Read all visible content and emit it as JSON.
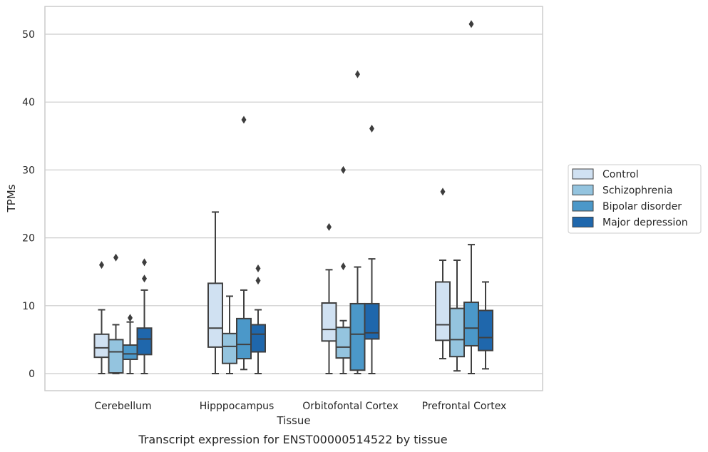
{
  "chart_data": {
    "type": "box",
    "xlabel": "Tissue",
    "ylabel": "TPMs",
    "caption": "Transcript expression for ENST00000514522 by tissue",
    "ylim": [
      -2.5,
      54
    ],
    "yticks": [
      0,
      10,
      20,
      30,
      40,
      50
    ],
    "grid": "horizontal",
    "legend_position": "right",
    "categories": [
      "Cerebellum",
      "Hipppocampus",
      "Orbitofontal Cortex",
      "Prefrontal Cortex"
    ],
    "series": [
      {
        "name": "Control",
        "color": "#d0e1f2",
        "boxes": [
          {
            "whislo": 0,
            "q1": 2.4,
            "med": 3.8,
            "q3": 5.8,
            "whishi": 9.4,
            "fliers": [
              16.0
            ]
          },
          {
            "whislo": 0,
            "q1": 3.9,
            "med": 6.7,
            "q3": 13.3,
            "whishi": 23.8,
            "fliers": []
          },
          {
            "whislo": 0,
            "q1": 4.8,
            "med": 6.5,
            "q3": 10.4,
            "whishi": 15.3,
            "fliers": [
              21.6
            ]
          },
          {
            "whislo": 2.2,
            "q1": 4.9,
            "med": 7.2,
            "q3": 13.5,
            "whishi": 16.7,
            "fliers": [
              26.8
            ]
          }
        ]
      },
      {
        "name": "Schizophrenia",
        "color": "#94c4df",
        "boxes": [
          {
            "whislo": 0,
            "q1": 0.1,
            "med": 3.2,
            "q3": 5.0,
            "whishi": 7.2,
            "fliers": [
              17.1
            ]
          },
          {
            "whislo": 0,
            "q1": 1.5,
            "med": 4.0,
            "q3": 5.9,
            "whishi": 11.4,
            "fliers": []
          },
          {
            "whislo": 0,
            "q1": 2.3,
            "med": 3.9,
            "q3": 6.8,
            "whishi": 7.8,
            "fliers": [
              15.8,
              30.0
            ]
          },
          {
            "whislo": 0.4,
            "q1": 2.5,
            "med": 5.0,
            "q3": 9.6,
            "whishi": 16.7,
            "fliers": []
          }
        ]
      },
      {
        "name": "Bipolar disorder",
        "color": "#4b98c9",
        "boxes": [
          {
            "whislo": 0,
            "q1": 2.1,
            "med": 2.9,
            "q3": 4.2,
            "whishi": 7.6,
            "fliers": [
              8.2
            ]
          },
          {
            "whislo": 0.6,
            "q1": 2.2,
            "med": 4.3,
            "q3": 8.1,
            "whishi": 12.3,
            "fliers": [
              37.4
            ]
          },
          {
            "whislo": 0,
            "q1": 0.5,
            "med": 5.8,
            "q3": 10.3,
            "whishi": 15.7,
            "fliers": [
              44.1
            ]
          },
          {
            "whislo": 0,
            "q1": 4.1,
            "med": 6.7,
            "q3": 10.5,
            "whishi": 19.0,
            "fliers": [
              51.5
            ]
          }
        ]
      },
      {
        "name": "Major depression",
        "color": "#1f67ac",
        "boxes": [
          {
            "whislo": 0,
            "q1": 2.8,
            "med": 5.1,
            "q3": 6.7,
            "whishi": 12.3,
            "fliers": [
              14.0,
              16.4
            ]
          },
          {
            "whislo": 0,
            "q1": 3.2,
            "med": 5.8,
            "q3": 7.2,
            "whishi": 9.4,
            "fliers": [
              13.7,
              15.5
            ]
          },
          {
            "whislo": 0,
            "q1": 5.1,
            "med": 6.0,
            "q3": 10.3,
            "whishi": 16.9,
            "fliers": [
              36.1
            ]
          },
          {
            "whislo": 0.7,
            "q1": 3.4,
            "med": 5.3,
            "q3": 9.3,
            "whishi": 13.5,
            "fliers": []
          }
        ]
      }
    ]
  }
}
